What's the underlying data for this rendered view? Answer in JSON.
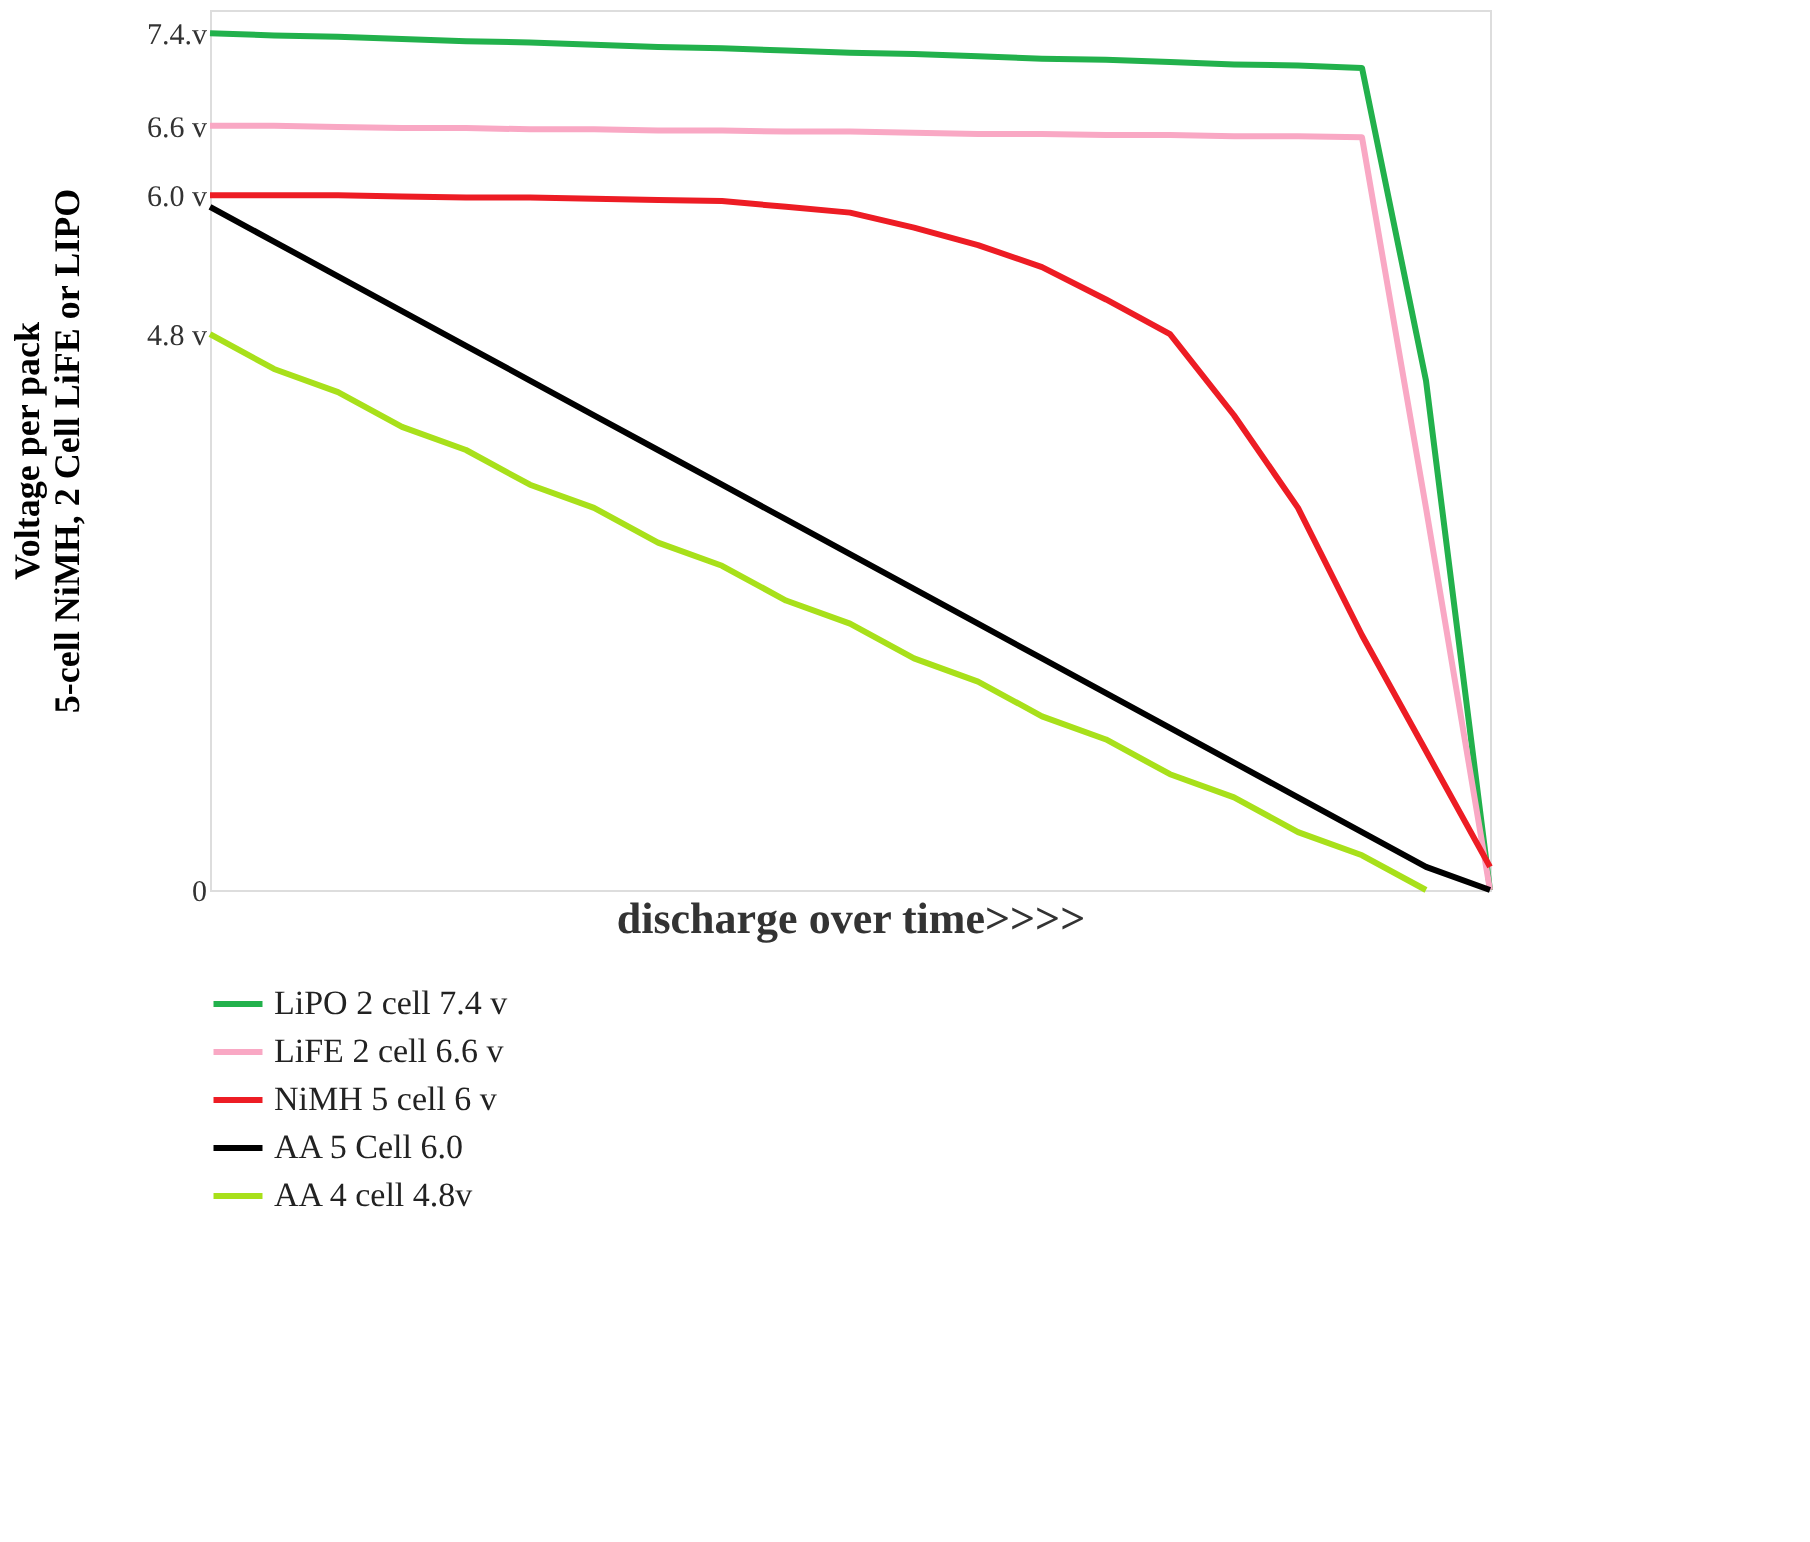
{
  "chart_data": {
    "type": "line",
    "xlabel": "discharge over time>>>>",
    "ylabel": "Voltage per pack\n5-cell NiMH, 2 Cell LiFE or LIPO",
    "categories": [
      null,
      null,
      null,
      null,
      null,
      null,
      null,
      null,
      null,
      null,
      null,
      null,
      null,
      null,
      null,
      null,
      null,
      null,
      null,
      null,
      null
    ],
    "ylim": [
      0,
      7.6
    ],
    "yticks": [
      {
        "value": 0,
        "label": "0"
      },
      {
        "value": 4.8,
        "label": "4.8 v"
      },
      {
        "value": 6.0,
        "label": "6.0 v"
      },
      {
        "value": 6.6,
        "label": "6.6 v"
      },
      {
        "value": 7.4,
        "label": "7.4.v"
      }
    ],
    "tick_labels": "y",
    "grid": false,
    "legend": "bottom",
    "line_style": "solid",
    "marker": "none",
    "series": [
      {
        "name": "LiPO 2 cell 7.4 v",
        "color": "#22b14c",
        "values": [
          7.4,
          7.38,
          7.37,
          7.35,
          7.33,
          7.32,
          7.3,
          7.28,
          7.27,
          7.25,
          7.23,
          7.22,
          7.2,
          7.18,
          7.17,
          7.15,
          7.13,
          7.12,
          7.1,
          4.4,
          0
        ]
      },
      {
        "name": "LiFE 2 cell 6.6 v",
        "color": "#f9a8c4",
        "values": [
          6.6,
          6.6,
          6.59,
          6.58,
          6.58,
          6.57,
          6.57,
          6.56,
          6.56,
          6.55,
          6.55,
          6.54,
          6.53,
          6.53,
          6.52,
          6.52,
          6.51,
          6.51,
          6.5,
          3.3,
          0
        ]
      },
      {
        "name": "NiMH 5 cell 6 v",
        "color": "#ed1c24",
        "values": [
          6.0,
          6.0,
          6.0,
          5.99,
          5.98,
          5.98,
          5.97,
          5.96,
          5.95,
          5.9,
          5.85,
          5.72,
          5.57,
          5.38,
          5.1,
          4.8,
          4.1,
          3.3,
          2.2,
          1.2,
          0.2
        ]
      },
      {
        "name": "AA 5 Cell 6.0",
        "color": "#000000",
        "values": [
          5.9,
          5.6,
          5.3,
          5.0,
          4.7,
          4.4,
          4.1,
          3.8,
          3.5,
          3.2,
          2.9,
          2.6,
          2.3,
          2.0,
          1.7,
          1.4,
          1.1,
          0.8,
          0.5,
          0.2,
          0
        ]
      },
      {
        "name": "AA 4 cell 4.8v",
        "color": "#a8e01a",
        "values": [
          4.8,
          4.5,
          4.3,
          4.0,
          3.8,
          3.5,
          3.3,
          3.0,
          2.8,
          2.5,
          2.3,
          2.0,
          1.8,
          1.5,
          1.3,
          1.0,
          0.8,
          0.5,
          0.3,
          0,
          null
        ]
      }
    ]
  }
}
